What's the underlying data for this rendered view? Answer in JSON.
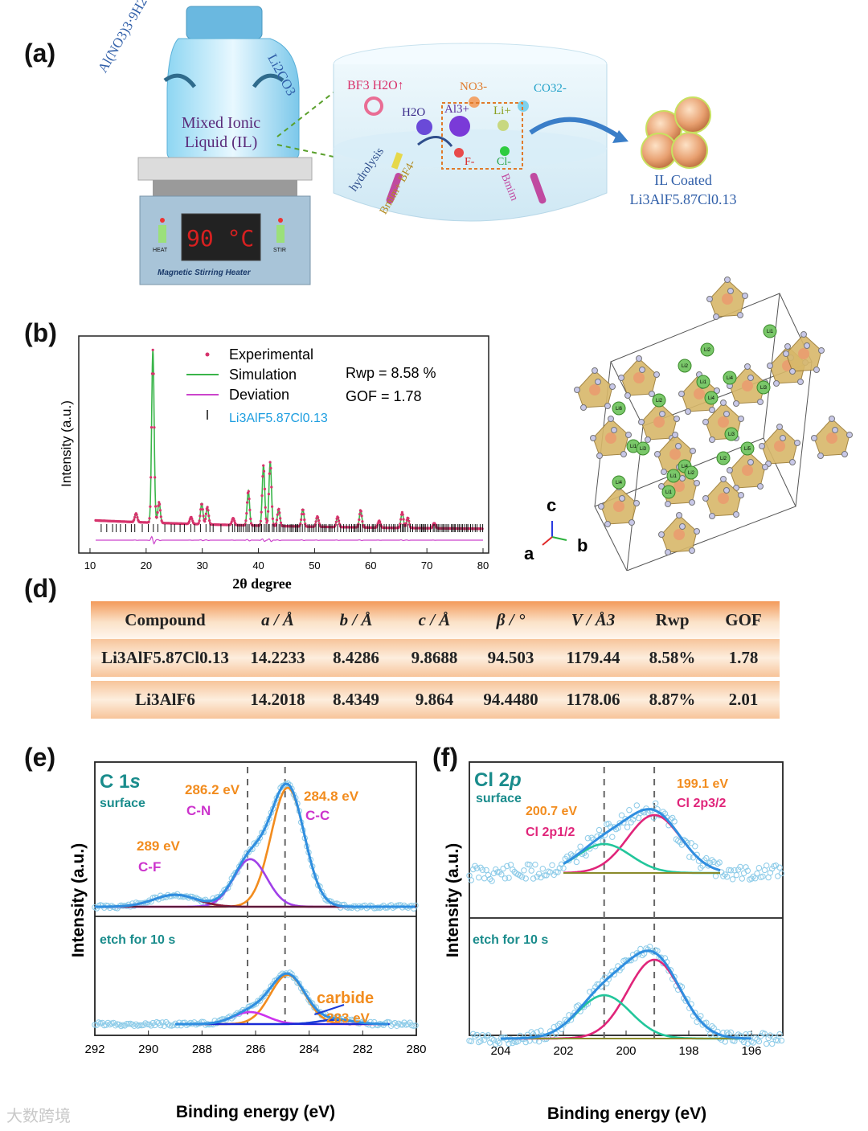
{
  "panel_labels": {
    "a": "(a)",
    "b": "(b)",
    "d": "(d)",
    "e": "(e)",
    "f": "(f)"
  },
  "panel_a": {
    "reagent_left": "Al(NO3)3·9H2O",
    "reagent_right": "Li2CO3",
    "bottle_label_line1": "Mixed Ionic",
    "bottle_label_line2": "Liquid (IL)",
    "heater_display": "90 °C",
    "heater_left_label": "HEAT",
    "heater_right_label": "STIR",
    "heater_name": "Magnetic Stirring Heater",
    "species": {
      "bf3_h2o": "BF3 H2O↑",
      "no3": "NO3-",
      "co3": "CO32-",
      "h2o": "H2O",
      "al": "Al3+",
      "li": "Li+",
      "f": "F-",
      "cl": "Cl-",
      "hydrolysis": "hydrolysis",
      "bmim_bf4": "Bmim+ BF4-",
      "bmim_left": "Bmim",
      "bmim_right": "Bmim"
    },
    "product_line1": "IL Coated",
    "product_line2": "Li3AlF5.87Cl0.13"
  },
  "panel_b": {
    "legend": {
      "experimental": "Experimental",
      "simulation": "Simulation",
      "deviation": "Deviation",
      "phase": "Li3AlF5.87Cl0.13"
    },
    "rwp": "Rwp = 8.58 %",
    "gof": "GOF = 1.78",
    "colors": {
      "experimental": "#d6336c",
      "simulation": "#3ab54a",
      "deviation": "#cc44cc",
      "phase": "#1e9ee0"
    }
  },
  "crystal": {
    "atom_labels": [
      "Li2",
      "Li1",
      "Li2",
      "Li4",
      "Li1",
      "Li3",
      "Li4",
      "Li2",
      "Li6",
      "Li1",
      "Li3",
      "Li4",
      "Li5"
    ],
    "axes": {
      "a": "a",
      "b": "b",
      "c": "c"
    }
  },
  "table_d": {
    "headers": [
      "Compound",
      "a / Å",
      "b / Å",
      "c / Å",
      "β / °",
      "V / Å3",
      "Rwp",
      "GOF"
    ],
    "rows": [
      [
        "Li3AlF5.87Cl0.13",
        "14.2233",
        "8.4286",
        "9.8688",
        "94.503",
        "1179.44",
        "8.58%",
        "1.78"
      ],
      [
        "Li3AlF6",
        "14.2018",
        "8.4349",
        "9.864",
        "94.4480",
        "1178.06",
        "8.87%",
        "2.01"
      ]
    ]
  },
  "chart_data": [
    {
      "type": "line",
      "id": "xrd_refinement",
      "title": "",
      "xlabel": "2θ degree",
      "ylabel": "Intensity (a.u.)",
      "xlim": [
        8,
        81
      ],
      "x_ticks": [
        10,
        20,
        30,
        40,
        50,
        60,
        70,
        80
      ],
      "peaks_2theta": [
        18.2,
        21.2,
        22.3,
        28.0,
        29.9,
        30.9,
        35.5,
        38.2,
        40.9,
        42.1,
        43.6,
        47.9,
        50.5,
        54.1,
        58.2,
        61.5,
        65.6,
        66.6,
        71.3
      ],
      "peak_relative_intensity": [
        0.05,
        1.0,
        0.12,
        0.04,
        0.12,
        0.1,
        0.04,
        0.2,
        0.35,
        0.37,
        0.1,
        0.1,
        0.06,
        0.06,
        0.1,
        0.04,
        0.09,
        0.06,
        0.03
      ]
    },
    {
      "type": "line",
      "id": "xps_c1s",
      "xlabel": "Binding energy (eV)",
      "ylabel": "Intensity (a.u.)",
      "xlim": [
        292,
        280
      ],
      "x_ticks": [
        292,
        290,
        288,
        286,
        284,
        282,
        280
      ],
      "title": "C 1s",
      "panels": [
        {
          "label": "surface",
          "components": [
            {
              "name": "C-C",
              "center": 284.8,
              "label": "284.8 eV",
              "rel_height": 1.0,
              "color": "#f28c1e"
            },
            {
              "name": "C-N",
              "center": 286.2,
              "label": "286.2 eV",
              "rel_height": 0.4,
              "color": "#a040e8"
            },
            {
              "name": "C-F",
              "center": 289.0,
              "label": "289 eV",
              "rel_height": 0.1,
              "color": "#8b1a3a"
            }
          ]
        },
        {
          "label": "etch for 10 s",
          "components": [
            {
              "name": "C-C",
              "center": 284.8,
              "rel_height": 0.9,
              "color": "#f28c1e"
            },
            {
              "name": "C-N",
              "center": 286.2,
              "rel_height": 0.22,
              "color": "#cc33ee"
            },
            {
              "name": "carbide",
              "center": 283.0,
              "label": "283 eV",
              "rel_height": 0.08,
              "color": "#1a3ad6"
            }
          ]
        }
      ]
    },
    {
      "type": "line",
      "id": "xps_cl2p",
      "xlabel": "Binding energy (eV)",
      "ylabel": "Intensity (a.u.)",
      "xlim": [
        205,
        195
      ],
      "x_ticks": [
        204,
        202,
        200,
        198,
        196
      ],
      "title": "Cl 2p",
      "panels": [
        {
          "label": "surface",
          "components": [
            {
              "name": "Cl 2p3/2",
              "center": 199.1,
              "label": "199.1 eV",
              "rel_height": 1.0,
              "color": "#e0257a"
            },
            {
              "name": "Cl 2p1/2",
              "center": 200.7,
              "label": "200.7 eV",
              "rel_height": 0.5,
              "color": "#22c69b"
            }
          ]
        },
        {
          "label": "etch for 10 s",
          "components": [
            {
              "name": "Cl 2p3/2",
              "center": 199.1,
              "rel_height": 1.0,
              "color": "#e0257a"
            },
            {
              "name": "Cl 2p1/2",
              "center": 200.7,
              "rel_height": 0.55,
              "color": "#22c69b"
            }
          ]
        }
      ]
    }
  ],
  "e_labels": {
    "title_main": "C 1",
    "title_orbital": "s",
    "surface": "surface",
    "etch": "etch for 10 s",
    "ev289": "289 eV",
    "cf": "C-F",
    "ev2862": "286.2 eV",
    "cn": "C-N",
    "ev2848": "284.8 eV",
    "cc": "C-C",
    "carbide": "carbide",
    "ev283": "283 eV"
  },
  "f_labels": {
    "title_main": "Cl 2",
    "title_orbital": "p",
    "surface": "surface",
    "etch": "etch for 10 s",
    "ev2007": "200.7 eV",
    "cl12": "Cl 2p1/2",
    "ev1991": "199.1 eV",
    "cl32": "Cl 2p3/2"
  },
  "watermark": "大数跨境"
}
